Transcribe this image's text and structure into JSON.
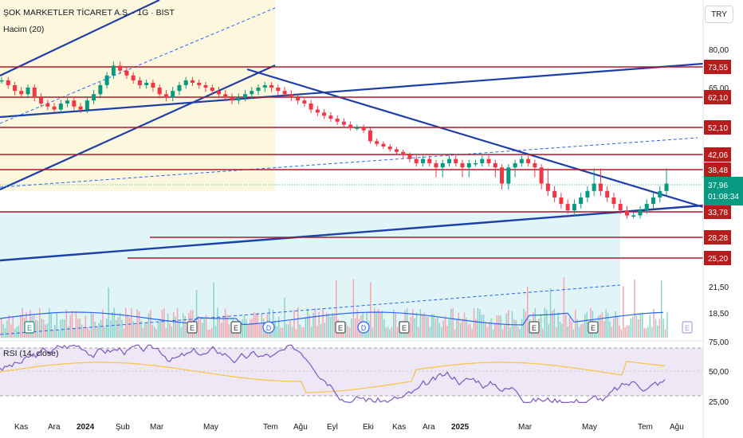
{
  "header": {
    "symbol_title": "ŞOK MARKETLER TİCARET A.Ş. · 1G · BIST",
    "volume_title": "Hacim (20)",
    "rsi_title": "RSI (14, close)",
    "currency": "TRY"
  },
  "colors": {
    "up": "#089981",
    "down": "#f23645",
    "level_line": "#b2182b",
    "level_label_bg": "#b71c1c",
    "trend_line": "#1e3fa8",
    "dashed_line": "#2962ff",
    "current_price_bg": "#089981",
    "rsi_line": "#7e57c2",
    "rsi_ma": "#f7c541",
    "volume_ma": "#2962ff"
  },
  "chart_data": {
    "type": "candlestick",
    "price_axis_ticks": [
      "80,00",
      "65,00",
      "21,50",
      "18,50"
    ],
    "price_levels": [
      {
        "label": "73,55",
        "value": 73.55
      },
      {
        "label": "62,10",
        "value": 62.1
      },
      {
        "label": "52,10",
        "value": 52.1
      },
      {
        "label": "42,06",
        "value": 42.06
      },
      {
        "label": "38,48",
        "value": 38.48
      },
      {
        "label": "33,78",
        "value": 33.78
      },
      {
        "label": "28,28",
        "value": 28.28
      },
      {
        "label": "25,20",
        "value": 25.2
      }
    ],
    "current_price": {
      "price": "37,96",
      "countdown": "01:08:34"
    },
    "x_axis_labels": [
      "Kas",
      "Ara",
      "2024",
      "Şub",
      "Mar",
      "May",
      "Tem",
      "Ağu",
      "Eyl",
      "Eki",
      "Kas",
      "Ara",
      "2025",
      "Mar",
      "May",
      "Tem",
      "Ağu"
    ],
    "rsi": {
      "levels": [
        75,
        50,
        25
      ],
      "tick_labels": [
        "75,00",
        "50,00",
        "25,00"
      ]
    },
    "event_markers": [
      "E",
      "E",
      "E",
      "D",
      "E",
      "D",
      "E",
      "E",
      "E",
      "E"
    ],
    "series": [
      {
        "values": [
          68,
          66,
          64,
          63,
          65,
          62,
          60,
          59,
          58,
          60,
          61,
          59,
          58,
          61,
          63,
          66,
          70,
          74,
          72,
          70,
          68,
          66,
          67,
          65,
          63,
          62,
          64,
          66,
          68,
          67,
          66,
          65,
          64,
          63,
          62,
          61,
          62,
          63,
          64,
          65,
          66,
          65,
          64,
          63,
          62,
          61,
          60,
          58,
          57,
          56,
          55,
          54,
          53,
          52,
          52,
          51,
          47,
          46,
          45,
          44,
          43,
          42,
          41,
          40,
          41,
          40,
          39,
          40,
          41,
          40,
          39,
          40,
          40,
          41,
          40,
          39,
          38,
          39,
          40,
          41,
          40,
          39,
          38,
          37,
          36,
          35,
          34,
          35,
          36,
          37,
          38,
          37,
          36,
          35,
          34,
          33,
          33,
          34,
          35,
          36,
          37,
          38
        ]
      }
    ]
  }
}
